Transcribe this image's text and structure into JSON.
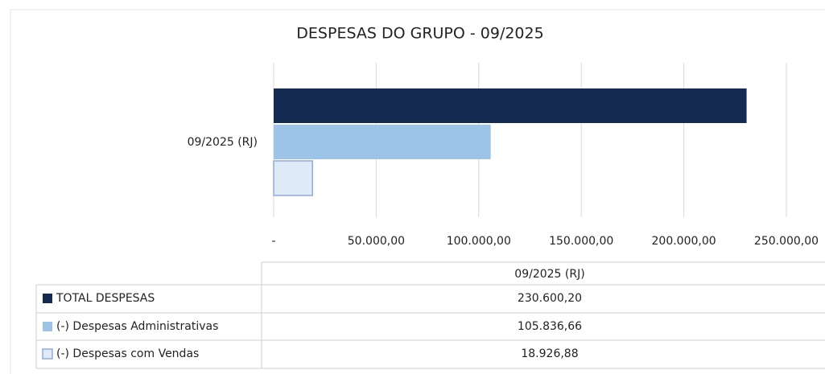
{
  "chart_data": {
    "type": "bar",
    "orientation": "horizontal",
    "title": "DESPESAS DO GRUPO - 09/2025",
    "categories": [
      "09/2025 (RJ)"
    ],
    "series": [
      {
        "name": "TOTAL DESPESAS",
        "color": "#142a50",
        "values": [
          230600.2
        ],
        "value_labels": [
          "230.600,20"
        ]
      },
      {
        "name": "(-) Despesas Administrativas",
        "color": "#9dc3e6",
        "values": [
          105836.66
        ],
        "value_labels": [
          "105.836,66"
        ]
      },
      {
        "name": "(-) Despesas com Vendas",
        "color": "#deebf7",
        "values": [
          18926.88
        ],
        "value_labels": [
          "18.926,88"
        ]
      }
    ],
    "xlim": [
      0,
      250000
    ],
    "xticks": [
      {
        "value": 0,
        "label": "-"
      },
      {
        "value": 50000,
        "label": "50.000,00"
      },
      {
        "value": 100000,
        "label": "100.000,00"
      },
      {
        "value": 150000,
        "label": "150.000,00"
      },
      {
        "value": 200000,
        "label": "200.000,00"
      },
      {
        "value": 250000,
        "label": "250.000,00"
      }
    ],
    "grid": true
  }
}
